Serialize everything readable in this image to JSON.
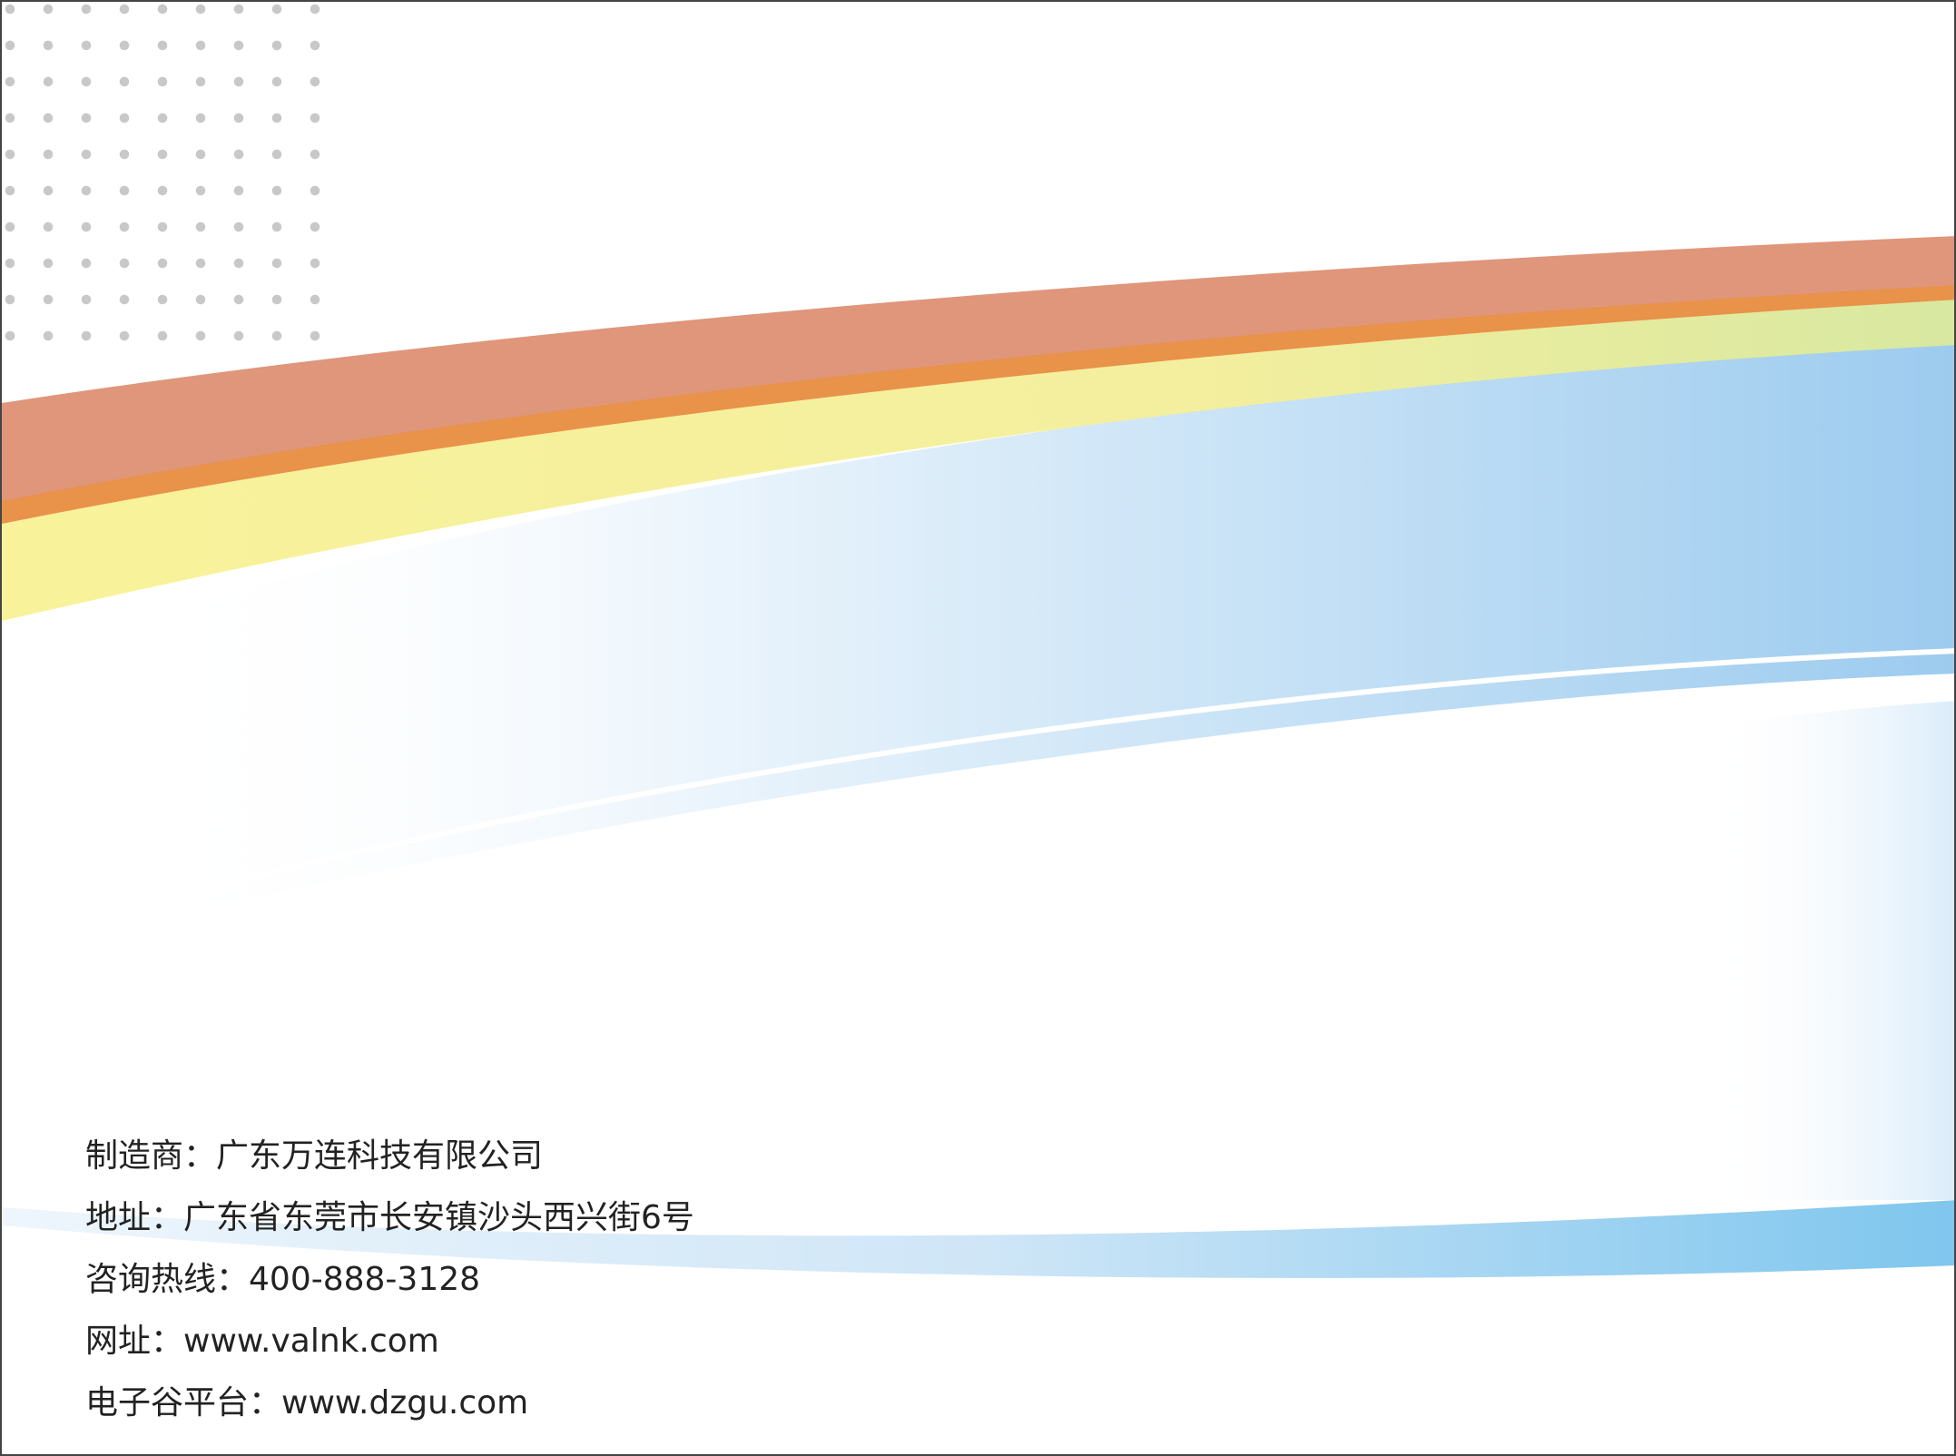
{
  "contact": {
    "manufacturer": {
      "label": "制造商：",
      "value": "广东万连科技有限公司"
    },
    "address": {
      "label": "地址：",
      "value": "广东省东莞市长安镇沙头西兴街6号"
    },
    "hotline": {
      "label": "咨询热线：",
      "value": "400-888-3128"
    },
    "website": {
      "label": "网址：",
      "value": "www.valnk.com"
    },
    "platform": {
      "label": "电子谷平台：",
      "value": "www.dzgu.com"
    }
  },
  "colors": {
    "orange_band": "#e0967a",
    "orange_stripe": "#e8924a",
    "yellow_band": "#f7f09a",
    "blue_dark": "#9ccbef",
    "blue_light": "#e8f3fb",
    "dot_gray": "#c8c8c8"
  }
}
